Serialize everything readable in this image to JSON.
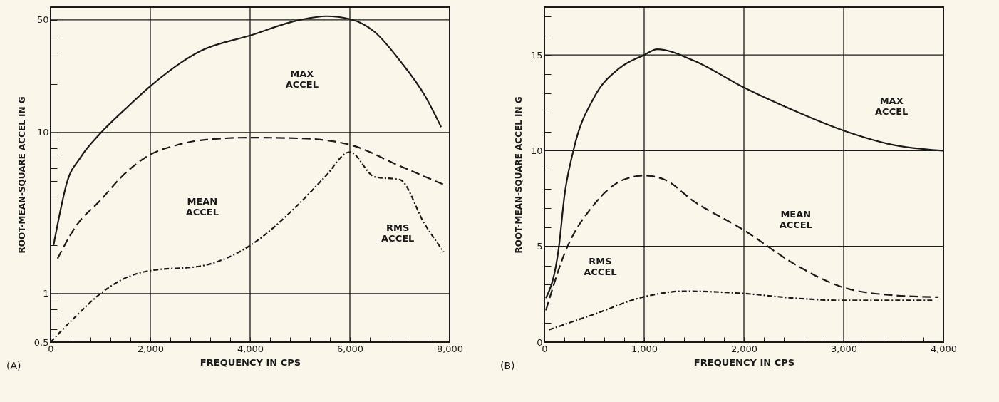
{
  "chart_data": [
    {
      "type": "line",
      "xlabel": "FREQUENCY IN CPS",
      "ylabel": "ROOT-MEAN-SQUARE ACCEL IN G",
      "log": "y",
      "grid": true,
      "legend": false,
      "xlim": [
        0,
        8000
      ],
      "ylim": [
        0.5,
        60
      ],
      "xticks": [
        {
          "value": 0,
          "label": "0"
        },
        {
          "value": 400,
          "label": null
        },
        {
          "value": 800,
          "label": null
        },
        {
          "value": 1200,
          "label": null
        },
        {
          "value": 1600,
          "label": null
        },
        {
          "value": 2000,
          "label": "2,000"
        },
        {
          "value": 2400,
          "label": null
        },
        {
          "value": 2800,
          "label": null
        },
        {
          "value": 3200,
          "label": null
        },
        {
          "value": 3600,
          "label": null
        },
        {
          "value": 4000,
          "label": "4,000"
        },
        {
          "value": 4400,
          "label": null
        },
        {
          "value": 4800,
          "label": null
        },
        {
          "value": 5200,
          "label": null
        },
        {
          "value": 5600,
          "label": null
        },
        {
          "value": 6000,
          "label": "6,000"
        },
        {
          "value": 6400,
          "label": null
        },
        {
          "value": 6800,
          "label": null
        },
        {
          "value": 7200,
          "label": null
        },
        {
          "value": 7600,
          "label": null
        },
        {
          "value": 8000,
          "label": "8,000"
        }
      ],
      "yticks": [
        0.5,
        {
          "value": 0.6,
          "label": null
        },
        {
          "value": 0.7,
          "label": null
        },
        {
          "value": 0.8,
          "label": null
        },
        {
          "value": 0.9,
          "label": null
        },
        1,
        {
          "value": 2,
          "label": null
        },
        {
          "value": 3,
          "label": null
        },
        {
          "value": 4,
          "label": null
        },
        {
          "value": 5,
          "label": null
        },
        {
          "value": 6,
          "label": null
        },
        {
          "value": 7,
          "label": null
        },
        {
          "value": 8,
          "label": null
        },
        {
          "value": 9,
          "label": null
        },
        10,
        {
          "value": 20,
          "label": null
        },
        {
          "value": 30,
          "label": null
        },
        {
          "value": 40,
          "label": null
        },
        50
      ],
      "series": [
        {
          "color": "#1a1a1a",
          "line_style": "solid",
          "x": [
            60,
            190,
            320,
            600,
            1000,
            1500,
            2000,
            3000,
            4000,
            5000,
            5530,
            6000,
            6500,
            7000,
            7500,
            7830
          ],
          "values": [
            2.0,
            3.2,
            4.8,
            7,
            9.9,
            14,
            19.4,
            32,
            40,
            50,
            52.7,
            50.6,
            42,
            28,
            17,
            10.8
          ]
        },
        {
          "color": "#1a1a1a",
          "line_style": "dashed",
          "x": [
            140,
            500,
            1000,
            1500,
            2000,
            2500,
            3000,
            4000,
            5000,
            6000,
            7000,
            7950
          ],
          "values": [
            1.65,
            2.6,
            3.8,
            5.6,
            7.3,
            8.3,
            8.95,
            9.3,
            9.2,
            8.4,
            6.2,
            4.65
          ]
        },
        {
          "color": "#1a1a1a",
          "line_style": "dashdot",
          "x": [
            0,
            500,
            1000,
            1500,
            2000,
            3000,
            4000,
            5000,
            5500,
            6000,
            6500,
            7000,
            7500,
            7880
          ],
          "values": [
            0.5,
            0.72,
            1.0,
            1.25,
            1.39,
            1.48,
            1.99,
            3.66,
            5.3,
            7.57,
            5.3,
            5.1,
            2.7,
            1.82
          ]
        }
      ],
      "annotations": [
        "MAX ACCEL",
        "MEAN ACCEL",
        "RMS ACCEL",
        "(A)"
      ]
    },
    {
      "type": "line",
      "xlabel": "FREQUENCY IN CPS",
      "ylabel": "ROOT-MEAN-SQUARE ACCEL IN G",
      "grid": true,
      "legend": false,
      "xlim": [
        0,
        4000
      ],
      "ylim": [
        0,
        17.5
      ],
      "xticks": [
        0,
        {
          "value": 200,
          "label": null
        },
        {
          "value": 400,
          "label": null
        },
        {
          "value": 600,
          "label": null
        },
        {
          "value": 800,
          "label": null
        },
        {
          "value": 1000,
          "label": "1,000"
        },
        {
          "value": 1200,
          "label": null
        },
        {
          "value": 1400,
          "label": null
        },
        {
          "value": 1600,
          "label": null
        },
        {
          "value": 1800,
          "label": null
        },
        {
          "value": 2000,
          "label": "2,000"
        },
        {
          "value": 2200,
          "label": null
        },
        {
          "value": 2400,
          "label": null
        },
        {
          "value": 2600,
          "label": null
        },
        {
          "value": 2800,
          "label": null
        },
        {
          "value": 3000,
          "label": "3,000"
        },
        {
          "value": 3200,
          "label": null
        },
        {
          "value": 3400,
          "label": null
        },
        {
          "value": 3600,
          "label": null
        },
        {
          "value": 3800,
          "label": null
        },
        {
          "value": 4000,
          "label": "4,000"
        }
      ],
      "yticks": [
        0,
        {
          "value": 1,
          "label": null
        },
        {
          "value": 2,
          "label": null
        },
        {
          "value": 3,
          "label": null
        },
        {
          "value": 4,
          "label": null
        },
        5,
        {
          "value": 6,
          "label": null
        },
        {
          "value": 7,
          "label": null
        },
        {
          "value": 8,
          "label": null
        },
        {
          "value": 9,
          "label": null
        },
        10,
        {
          "value": 11,
          "label": null
        },
        {
          "value": 12,
          "label": null
        },
        {
          "value": 13,
          "label": null
        },
        {
          "value": 14,
          "label": null
        },
        15,
        {
          "value": 16,
          "label": null
        },
        {
          "value": 17,
          "label": null
        }
      ],
      "series": [
        {
          "color": "#1a1a1a",
          "line_style": "solid",
          "x": [
            15,
            146,
            200,
            290,
            500,
            750,
            1000,
            1130,
            1500,
            2000,
            2500,
            3000,
            3500,
            4000
          ],
          "values": [
            2.3,
            5,
            7.6,
            10,
            12.8,
            14.3,
            15,
            15.3,
            14.7,
            13.3,
            12.1,
            11.05,
            10.3,
            10.0
          ]
        },
        {
          "color": "#1a1a1a",
          "line_style": "dashed",
          "x": [
            15,
            200,
            500,
            800,
            1000,
            1200,
            1500,
            2000,
            2500,
            3000,
            3500,
            3950
          ],
          "values": [
            1.66,
            4.6,
            7.2,
            8.5,
            8.7,
            8.5,
            7.35,
            5.85,
            4.1,
            2.85,
            2.45,
            2.35
          ]
        },
        {
          "color": "#1a1a1a",
          "line_style": "dashdot",
          "x": [
            45,
            500,
            1000,
            1400,
            2000,
            2500,
            3000,
            3900
          ],
          "values": [
            0.64,
            1.46,
            2.37,
            2.66,
            2.54,
            2.3,
            2.18,
            2.18
          ]
        }
      ],
      "annotations": [
        "MAX ACCEL",
        "MEAN ACCEL",
        "RMS ACCEL",
        "(B)"
      ]
    }
  ]
}
